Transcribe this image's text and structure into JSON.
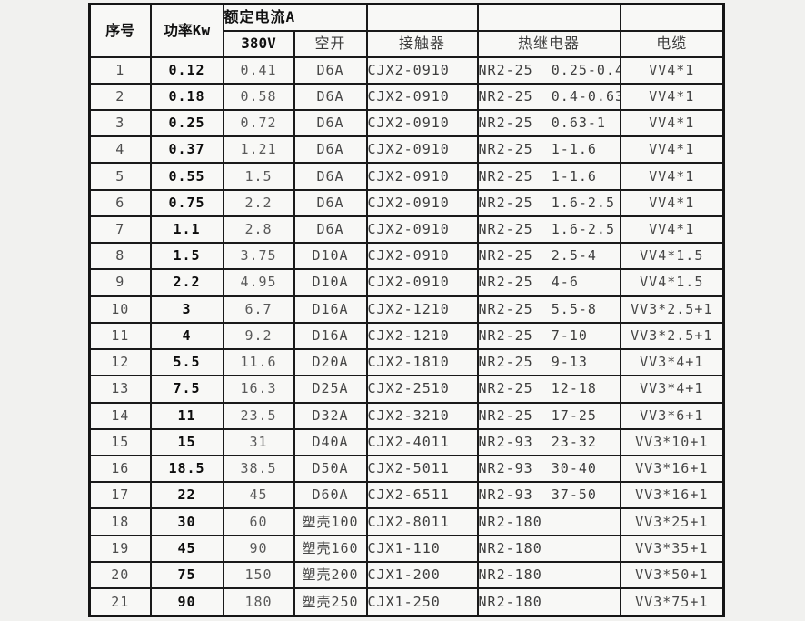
{
  "colors": {
    "page_background": "#f1f1ef",
    "cell_background": "#f8f8f6",
    "border": "#1a1a1a",
    "strong_text": "#111111",
    "normal_text": "#3d3d3d"
  },
  "table": {
    "header": {
      "col_serial": "序号",
      "col_power": "功率Kw",
      "col_rated_current": "额定电流A",
      "col_380v": "380V",
      "col_breaker": "空开",
      "col_contactor": "接触器",
      "col_thermal_relay": "热继电器",
      "col_cable": "电缆"
    },
    "rows": [
      [
        "1",
        "0.12",
        "0.41",
        "D6A",
        "CJX2-0910",
        "NR2-25  0.25-0.4",
        "VV4*1"
      ],
      [
        "2",
        "0.18",
        "0.58",
        "D6A",
        "CJX2-0910",
        "NR2-25  0.4-0.63",
        "VV4*1"
      ],
      [
        "3",
        "0.25",
        "0.72",
        "D6A",
        "CJX2-0910",
        "NR2-25  0.63-1",
        "VV4*1"
      ],
      [
        "4",
        "0.37",
        "1.21",
        "D6A",
        "CJX2-0910",
        "NR2-25  1-1.6",
        "VV4*1"
      ],
      [
        "5",
        "0.55",
        "1.5",
        "D6A",
        "CJX2-0910",
        "NR2-25  1-1.6",
        "VV4*1"
      ],
      [
        "6",
        "0.75",
        "2.2",
        "D6A",
        "CJX2-0910",
        "NR2-25  1.6-2.5",
        "VV4*1"
      ],
      [
        "7",
        "1.1",
        "2.8",
        "D6A",
        "CJX2-0910",
        "NR2-25  1.6-2.5",
        "VV4*1"
      ],
      [
        "8",
        "1.5",
        "3.75",
        "D10A",
        "CJX2-0910",
        "NR2-25  2.5-4",
        "VV4*1.5"
      ],
      [
        "9",
        "2.2",
        "4.95",
        "D10A",
        "CJX2-0910",
        "NR2-25  4-6",
        "VV4*1.5"
      ],
      [
        "10",
        "3",
        "6.7",
        "D16A",
        "CJX2-1210",
        "NR2-25  5.5-8",
        "VV3*2.5+1"
      ],
      [
        "11",
        "4",
        "9.2",
        "D16A",
        "CJX2-1210",
        "NR2-25  7-10",
        "VV3*2.5+1"
      ],
      [
        "12",
        "5.5",
        "11.6",
        "D20A",
        "CJX2-1810",
        "NR2-25  9-13",
        "VV3*4+1"
      ],
      [
        "13",
        "7.5",
        "16.3",
        "D25A",
        "CJX2-2510",
        "NR2-25  12-18",
        "VV3*4+1"
      ],
      [
        "14",
        "11",
        "23.5",
        "D32A",
        "CJX2-3210",
        "NR2-25  17-25",
        "VV3*6+1"
      ],
      [
        "15",
        "15",
        "31",
        "D40A",
        "CJX2-4011",
        "NR2-93  23-32",
        "VV3*10+1"
      ],
      [
        "16",
        "18.5",
        "38.5",
        "D50A",
        "CJX2-5011",
        "NR2-93  30-40",
        "VV3*16+1"
      ],
      [
        "17",
        "22",
        "45",
        "D60A",
        "CJX2-6511",
        "NR2-93  37-50",
        "VV3*16+1"
      ],
      [
        "18",
        "30",
        "60",
        "塑壳100",
        "CJX2-8011",
        "NR2-180",
        "VV3*25+1"
      ],
      [
        "19",
        "45",
        "90",
        "塑壳160",
        "CJX1-110",
        "NR2-180",
        "VV3*35+1"
      ],
      [
        "20",
        "75",
        "150",
        "塑壳200",
        "CJX1-200",
        "NR2-180",
        "VV3*50+1"
      ],
      [
        "21",
        "90",
        "180",
        "塑壳250",
        "CJX1-250",
        "NR2-180",
        "VV3*75+1"
      ]
    ]
  }
}
